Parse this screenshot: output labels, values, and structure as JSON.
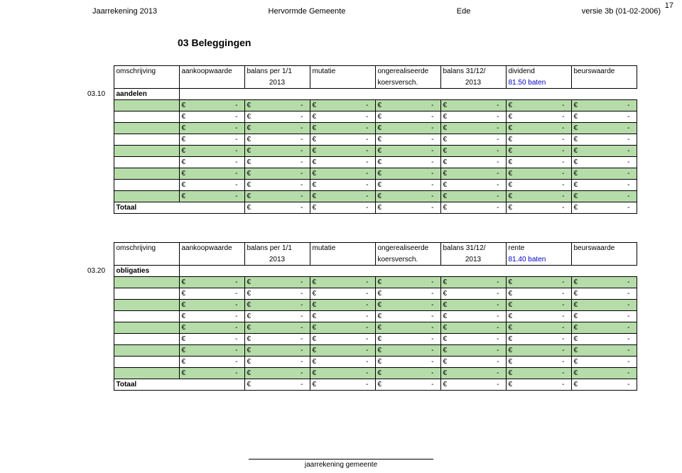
{
  "page_number": "17",
  "header": {
    "left": "Jaarrekening 2013",
    "mid1": "Hervormde Gemeente",
    "mid2": "Ede",
    "right": "versie 3b (01-02-2006)"
  },
  "section_title": "03   Beleggingen",
  "footer": "jaarrekening gemeente",
  "columns": {
    "desc": "omschrijving",
    "aankoop": "aankoopwaarde",
    "balans_per": "balans per 1/1",
    "balans_per_year": "2013",
    "mutatie": "mutatie",
    "ongereal": "ongerealiseerde",
    "koersversch": "koersversch.",
    "balans_31": "balans 31/12/",
    "balans_31_year": "2013",
    "dividend": "dividend",
    "rente": "rente",
    "beurswaarde": "beurswaarde"
  },
  "refs": {
    "dividend_ref": "81.50 baten",
    "rente_ref": "81.40 baten"
  },
  "tables": [
    {
      "code": "03.10",
      "label": "aandelen",
      "yield_key": "dividend",
      "ref_key": "dividend_ref",
      "rows": 9
    },
    {
      "code": "03.20",
      "label": "obligaties",
      "yield_key": "rente",
      "ref_key": "rente_ref",
      "rows": 9
    }
  ],
  "totaal_label": "Totaal",
  "cell_symbol": "€",
  "cell_dash": "-",
  "row_colors": {
    "even": "#ffffff",
    "odd": "#b6dca9"
  },
  "data_cols": 7,
  "totaal_cols": 6
}
